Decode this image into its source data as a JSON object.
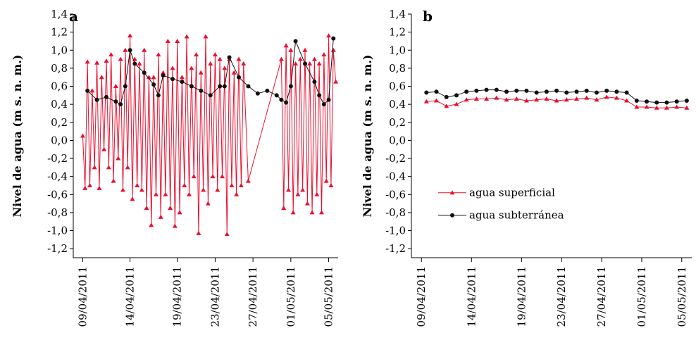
{
  "colors": {
    "superficial": "#e8102e",
    "subterranea": "#111111",
    "axis": "#000000"
  },
  "chart_data": [
    {
      "panel": "a",
      "type": "line",
      "ylabel": "Nivel de agua (m s. n. m.)",
      "xlabel": "",
      "ylim": [
        -1.3,
        1.4
      ],
      "yticks": [
        "1,4",
        "1,2",
        "1,0",
        "0,8",
        "0,6",
        "0,4",
        "0,2",
        "0,0",
        "-0,2",
        "-0,4",
        "-0,6",
        "-0,8",
        "-1,0",
        "-1,2"
      ],
      "xticks": [
        "09/04/2011",
        "14/04/2011",
        "19/04/2011",
        "23/04/2011",
        "27/04/2011",
        "01/05/2011",
        "05/05/2011"
      ],
      "xlim": [
        "08/04/2011",
        "06/05/2011"
      ],
      "grid": false,
      "series": [
        {
          "name": "agua superficial",
          "marker": "triangle",
          "x": [
            "09/04/2011",
            "09/04/2011",
            "09/04/2011",
            "09/04/2011",
            "10/04/2011",
            "10/04/2011",
            "10/04/2011",
            "10/04/2011",
            "11/04/2011",
            "11/04/2011",
            "11/04/2011",
            "11/04/2011",
            "12/04/2011",
            "12/04/2011",
            "12/04/2011",
            "12/04/2011",
            "13/04/2011",
            "13/04/2011",
            "13/04/2011",
            "13/04/2011",
            "14/04/2011",
            "14/04/2011",
            "14/04/2011",
            "14/04/2011",
            "15/04/2011",
            "15/04/2011",
            "15/04/2011",
            "15/04/2011",
            "16/04/2011",
            "16/04/2011",
            "16/04/2011",
            "16/04/2011",
            "17/04/2011",
            "17/04/2011",
            "17/04/2011",
            "17/04/2011",
            "18/04/2011",
            "18/04/2011",
            "18/04/2011",
            "18/04/2011",
            "19/04/2011",
            "19/04/2011",
            "19/04/2011",
            "19/04/2011",
            "20/04/2011",
            "20/04/2011",
            "20/04/2011",
            "20/04/2011",
            "21/04/2011",
            "21/04/2011",
            "21/04/2011",
            "21/04/2011",
            "22/04/2011",
            "22/04/2011",
            "22/04/2011",
            "22/04/2011",
            "23/04/2011",
            "23/04/2011",
            "23/04/2011",
            "23/04/2011",
            "24/04/2011",
            "24/04/2011",
            "24/04/2011",
            "24/04/2011",
            "25/04/2011",
            "25/04/2011",
            "25/04/2011",
            "25/04/2011",
            "26/04/2011",
            "26/04/2011",
            "30/04/2011",
            "30/04/2011",
            "30/04/2011",
            "30/04/2011",
            "01/05/2011",
            "01/05/2011",
            "01/05/2011",
            "01/05/2011",
            "02/05/2011",
            "02/05/2011",
            "02/05/2011",
            "02/05/2011",
            "03/05/2011",
            "03/05/2011",
            "03/05/2011",
            "03/05/2011",
            "04/05/2011",
            "04/05/2011",
            "04/05/2011",
            "04/05/2011",
            "05/05/2011",
            "05/05/2011",
            "05/05/2011",
            "05/05/2011"
          ],
          "y": [
            0.05,
            -0.53,
            0.87,
            -0.5,
            0.55,
            -0.3,
            0.86,
            -0.53,
            0.7,
            -0.1,
            0.88,
            -0.3,
            0.95,
            -0.45,
            0.6,
            -0.2,
            0.9,
            -0.55,
            1.0,
            -0.3,
            1.16,
            -0.65,
            0.9,
            -0.5,
            0.85,
            -0.55,
            1.0,
            -0.75,
            0.7,
            -0.94,
            0.7,
            -0.6,
            0.95,
            -0.85,
            0.75,
            -0.6,
            1.1,
            -0.75,
            0.8,
            -0.95,
            1.1,
            -0.8,
            0.7,
            -0.5,
            1.15,
            -0.6,
            0.8,
            -0.4,
            0.95,
            -1.03,
            0.75,
            -0.55,
            1.15,
            -0.7,
            0.85,
            -0.4,
            0.95,
            -0.55,
            0.9,
            -0.4,
            0.8,
            -1.04,
            0.9,
            -0.5,
            0.75,
            -0.6,
            0.9,
            -0.5,
            0.85,
            -0.45,
            0.9,
            -0.75,
            1.05,
            -0.55,
            1.0,
            -0.8,
            0.85,
            -0.6,
            0.9,
            -0.55,
            1.0,
            -0.7,
            0.85,
            -0.8,
            0.9,
            -0.6,
            0.85,
            -0.8,
            0.95,
            -0.45,
            1.16,
            -0.5,
            1.0,
            0.65
          ]
        },
        {
          "name": "agua subterránea",
          "marker": "circle",
          "x": [
            "09/04/2011",
            "10/04/2011",
            "11/04/2011",
            "12/04/2011",
            "13/04/2011",
            "13/04/2011",
            "14/04/2011",
            "14/04/2011",
            "15/04/2011",
            "16/04/2011",
            "17/04/2011",
            "17/04/2011",
            "18/04/2011",
            "19/04/2011",
            "20/04/2011",
            "21/04/2011",
            "22/04/2011",
            "23/04/2011",
            "24/04/2011",
            "24/04/2011",
            "25/04/2011",
            "26/04/2011",
            "27/04/2011",
            "28/04/2011",
            "29/04/2011",
            "30/04/2011",
            "30/04/2011",
            "01/05/2011",
            "01/05/2011",
            "02/05/2011",
            "03/05/2011",
            "04/05/2011",
            "04/05/2011",
            "05/05/2011",
            "05/05/2011"
          ],
          "y": [
            0.55,
            0.45,
            0.48,
            0.43,
            0.4,
            0.6,
            1.0,
            0.85,
            0.75,
            0.62,
            0.5,
            0.72,
            0.68,
            0.65,
            0.6,
            0.55,
            0.5,
            0.6,
            0.6,
            0.92,
            0.7,
            0.6,
            0.52,
            0.55,
            0.5,
            0.45,
            0.42,
            0.6,
            1.1,
            0.85,
            0.65,
            0.5,
            0.4,
            0.45,
            1.13
          ]
        }
      ]
    },
    {
      "panel": "b",
      "type": "line",
      "ylabel": "Nivel de agua (m s. n. m.)",
      "xlabel": "",
      "ylim": [
        -1.3,
        1.4
      ],
      "yticks": [
        "1,4",
        "1,2",
        "1,0",
        "0,8",
        "0,6",
        "0,4",
        "0,2",
        "0,0",
        "-0,2",
        "-0,4",
        "-0,6",
        "-0,8",
        "-1,0",
        "-1,2"
      ],
      "xticks": [
        "09/04/2011",
        "14/04/2011",
        "19/04/2011",
        "23/04/2011",
        "27/04/2011",
        "01/05/2011",
        "05/05/2011"
      ],
      "xlim": [
        "08/04/2011",
        "06/05/2011"
      ],
      "grid": false,
      "legend": "center-left",
      "series": [
        {
          "name": "agua superficial",
          "marker": "triangle",
          "x": [
            "09/04/2011",
            "10/04/2011",
            "11/04/2011",
            "12/04/2011",
            "13/04/2011",
            "14/04/2011",
            "15/04/2011",
            "16/04/2011",
            "17/04/2011",
            "18/04/2011",
            "19/04/2011",
            "20/04/2011",
            "21/04/2011",
            "22/04/2011",
            "23/04/2011",
            "24/04/2011",
            "25/04/2011",
            "26/04/2011",
            "27/04/2011",
            "28/04/2011",
            "29/04/2011",
            "30/04/2011",
            "01/05/2011",
            "02/05/2011",
            "03/05/2011",
            "04/05/2011",
            "05/05/2011"
          ],
          "y": [
            0.43,
            0.44,
            0.38,
            0.4,
            0.45,
            0.46,
            0.46,
            0.47,
            0.45,
            0.46,
            0.44,
            0.45,
            0.46,
            0.44,
            0.45,
            0.46,
            0.47,
            0.45,
            0.48,
            0.47,
            0.44,
            0.37,
            0.37,
            0.36,
            0.36,
            0.37,
            0.36
          ]
        },
        {
          "name": "agua subterránea",
          "marker": "circle",
          "x": [
            "09/04/2011",
            "10/04/2011",
            "11/04/2011",
            "12/04/2011",
            "13/04/2011",
            "14/04/2011",
            "15/04/2011",
            "16/04/2011",
            "17/04/2011",
            "18/04/2011",
            "19/04/2011",
            "20/04/2011",
            "21/04/2011",
            "22/04/2011",
            "23/04/2011",
            "24/04/2011",
            "25/04/2011",
            "26/04/2011",
            "27/04/2011",
            "28/04/2011",
            "29/04/2011",
            "30/04/2011",
            "01/05/2011",
            "02/05/2011",
            "03/05/2011",
            "04/05/2011",
            "05/05/2011"
          ],
          "y": [
            0.53,
            0.54,
            0.48,
            0.5,
            0.54,
            0.55,
            0.56,
            0.56,
            0.54,
            0.55,
            0.55,
            0.53,
            0.54,
            0.55,
            0.53,
            0.54,
            0.55,
            0.53,
            0.55,
            0.54,
            0.53,
            0.44,
            0.43,
            0.42,
            0.42,
            0.43,
            0.44
          ]
        }
      ]
    }
  ]
}
